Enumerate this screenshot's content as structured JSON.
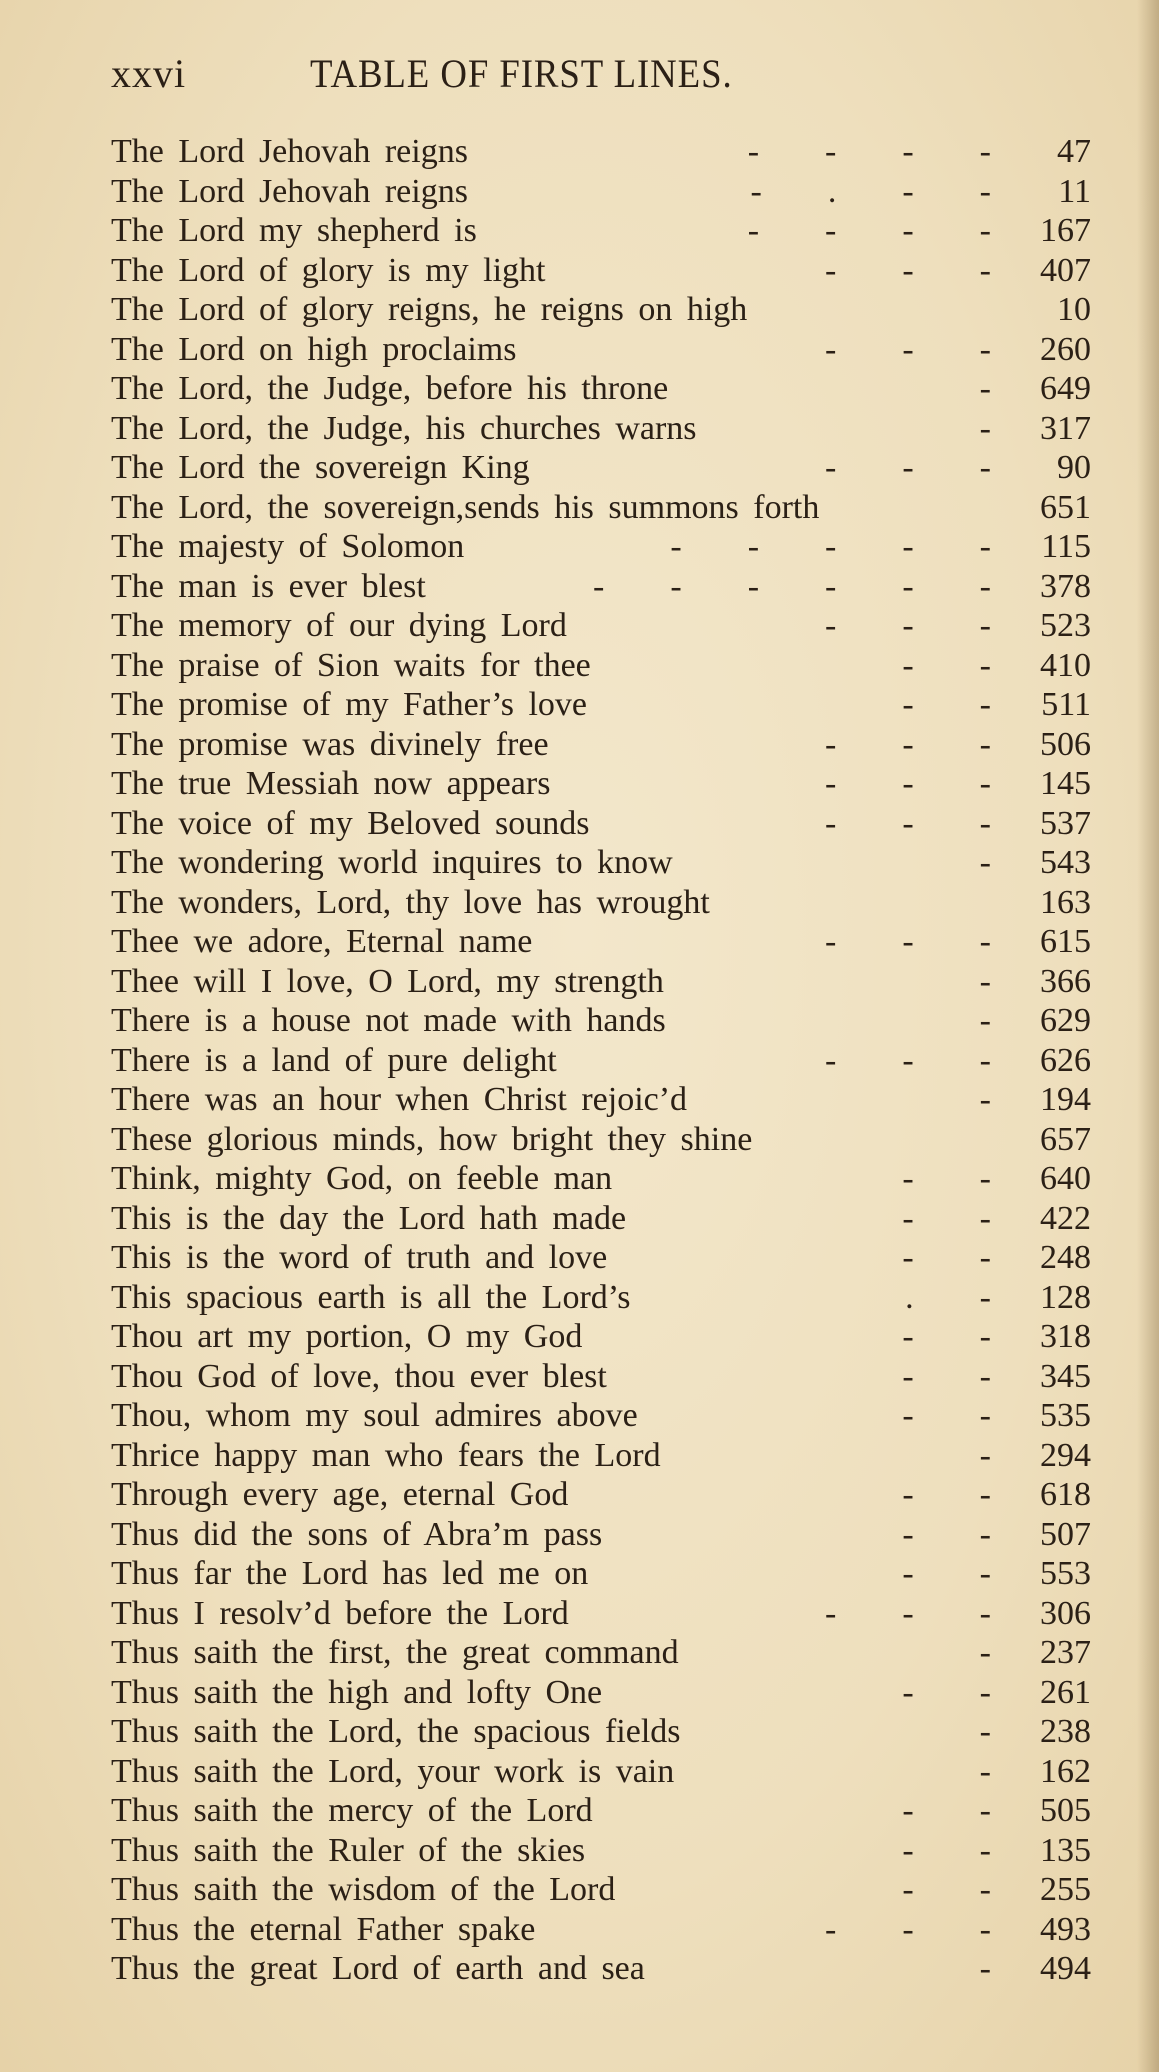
{
  "header": {
    "folio": "xxvi",
    "title": "TABLE OF FIRST LINES."
  },
  "entries": [
    {
      "line": "The Lord Jehovah reigns",
      "leader": "- - - -",
      "page": "47"
    },
    {
      "line": "The Lord Jehovah reigns",
      "leader": "- . - -",
      "page": "11"
    },
    {
      "line": "The Lord my shepherd is",
      "leader": "- - - -",
      "page": "167"
    },
    {
      "line": "The Lord of glory is my light",
      "leader": "- - -",
      "page": "407"
    },
    {
      "line": "The Lord of glory reigns, he reigns on high",
      "leader": "",
      "page": "10"
    },
    {
      "line": "The Lord on high proclaims",
      "leader": "- - -",
      "page": "260"
    },
    {
      "line": "The Lord, the Judge, before his throne",
      "leader": "-",
      "page": "649"
    },
    {
      "line": "The Lord, the Judge, his churches warns",
      "leader": "-",
      "page": "317"
    },
    {
      "line": "The Lord the sovereign King",
      "leader": "- - -",
      "page": "90"
    },
    {
      "line": "The Lord, the sovereign,sends his summons forth",
      "leader": "",
      "page": "651"
    },
    {
      "line": "The majesty of Solomon",
      "leader": "- - - - -",
      "page": "115"
    },
    {
      "line": "The man is ever blest",
      "leader": "- - - - - -",
      "page": "378"
    },
    {
      "line": "The memory of our dying Lord",
      "leader": "- - -",
      "page": "523"
    },
    {
      "line": "The praise of Sion waits for thee",
      "leader": "- -",
      "page": "410"
    },
    {
      "line": "The promise of my Father’s love",
      "leader": "- -",
      "page": "511"
    },
    {
      "line": "The promise was divinely free",
      "leader": "- - -",
      "page": "506"
    },
    {
      "line": "The true Messiah now appears",
      "leader": "- - -",
      "page": "145"
    },
    {
      "line": "The voice of my Beloved sounds",
      "leader": "- - -",
      "page": "537"
    },
    {
      "line": "The wondering world inquires to know",
      "leader": "-",
      "page": "543"
    },
    {
      "line": "The wonders, Lord, thy love has wrought",
      "leader": "",
      "page": "163"
    },
    {
      "line": "Thee we adore, Eternal name",
      "leader": "- - -",
      "page": "615"
    },
    {
      "line": "Thee will I love, O Lord, my strength",
      "leader": "-",
      "page": "366"
    },
    {
      "line": "There is a house not made with hands",
      "leader": "-",
      "page": "629"
    },
    {
      "line": "There is a land of pure delight",
      "leader": "- - -",
      "page": "626"
    },
    {
      "line": "There was an hour when Christ rejoic’d",
      "leader": "-",
      "page": "194"
    },
    {
      "line": "These glorious minds, how bright they shine",
      "leader": "",
      "page": "657"
    },
    {
      "line": "Think, mighty God, on feeble man",
      "leader": "- -",
      "page": "640"
    },
    {
      "line": "This is the day the Lord hath made",
      "leader": "- -",
      "page": "422"
    },
    {
      "line": "This is the word of truth and love",
      "leader": "- -",
      "page": "248"
    },
    {
      "line": "This spacious earth is all the Lord’s",
      "leader": ". -",
      "page": "128"
    },
    {
      "line": "Thou art my portion, O my God",
      "leader": "- -",
      "page": "318"
    },
    {
      "line": "Thou God of love, thou ever blest",
      "leader": "- -",
      "page": "345"
    },
    {
      "line": "Thou, whom my soul admires above",
      "leader": "- -",
      "page": "535"
    },
    {
      "line": "Thrice happy man who fears the Lord",
      "leader": "-",
      "page": "294"
    },
    {
      "line": "Through every age, eternal God",
      "leader": "- -",
      "page": "618"
    },
    {
      "line": "Thus did the sons of Abra’m pass",
      "leader": "- -",
      "page": "507"
    },
    {
      "line": "Thus far the Lord has led me on",
      "leader": "- -",
      "page": "553"
    },
    {
      "line": "Thus I resolv’d before the Lord",
      "leader": "- - -",
      "page": "306"
    },
    {
      "line": "Thus saith the first, the great command",
      "leader": "-",
      "page": "237"
    },
    {
      "line": "Thus saith the high and lofty One",
      "leader": "- -",
      "page": "261"
    },
    {
      "line": "Thus saith the Lord, the spacious fields",
      "leader": "-",
      "page": "238"
    },
    {
      "line": "Thus saith the Lord, your work is vain",
      "leader": "-",
      "page": "162"
    },
    {
      "line": "Thus saith the mercy of the Lord",
      "leader": "- -",
      "page": "505"
    },
    {
      "line": "Thus saith the Ruler of the skies",
      "leader": "- -",
      "page": "135"
    },
    {
      "line": "Thus saith the wisdom of the Lord",
      "leader": "- -",
      "page": "255"
    },
    {
      "line": "Thus the eternal Father spake",
      "leader": "- - -",
      "page": "493"
    },
    {
      "line": "Thus the great Lord of earth and sea",
      "leader": "-",
      "page": "494"
    }
  ]
}
